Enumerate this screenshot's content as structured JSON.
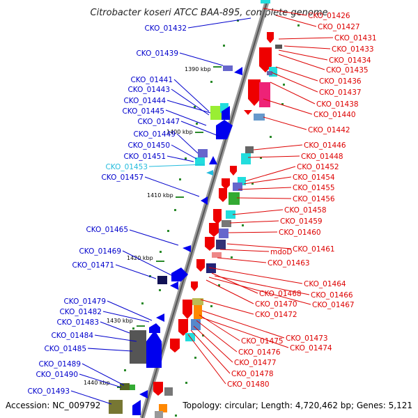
{
  "title": "Citrobacter koseri ATCC BAA-895, complete genome",
  "footer": {
    "accession": "Accession: NC_009792",
    "topology": "Topology: circular; Length: 4,720,462 bp; Genes: 5,121"
  },
  "ticks": [
    "1390 kbp",
    "1400 kbp",
    "1410 kbp",
    "1420 kbp",
    "1430 kbp",
    "1440 kbp"
  ],
  "left_labels": [
    {
      "text": "CKO_01432",
      "color": "#0000cc"
    },
    {
      "text": "CKO_01439",
      "color": "#0000cc"
    },
    {
      "text": "CKO_01441",
      "color": "#0000cc"
    },
    {
      "text": "CKO_01443",
      "color": "#0000cc"
    },
    {
      "text": "CKO_01444",
      "color": "#0000cc"
    },
    {
      "text": "CKO_01445",
      "color": "#0000cc"
    },
    {
      "text": "CKO_01447",
      "color": "#0000cc"
    },
    {
      "text": "CKO_01449",
      "color": "#0000cc"
    },
    {
      "text": "CKO_01450",
      "color": "#0000cc"
    },
    {
      "text": "CKO_01451",
      "color": "#0000cc"
    },
    {
      "text": "CKO_01453",
      "color": "#22bbdd"
    },
    {
      "text": "CKO_01457",
      "color": "#0000cc"
    },
    {
      "text": "CKO_01465",
      "color": "#0000cc"
    },
    {
      "text": "CKO_01469",
      "color": "#0000cc"
    },
    {
      "text": "CKO_01471",
      "color": "#0000cc"
    },
    {
      "text": "CKO_01479",
      "color": "#0000cc"
    },
    {
      "text": "CKO_01482",
      "color": "#0000cc"
    },
    {
      "text": "CKO_01483",
      "color": "#0000cc"
    },
    {
      "text": "CKO_01484",
      "color": "#0000cc"
    },
    {
      "text": "CKO_01485",
      "color": "#0000cc"
    },
    {
      "text": "CKO_01489",
      "color": "#0000cc"
    },
    {
      "text": "CKO_01490",
      "color": "#0000cc"
    },
    {
      "text": "CKO_01493",
      "color": "#0000cc"
    }
  ],
  "right_labels": [
    {
      "text": "CKO_01426",
      "color": "#dd0000"
    },
    {
      "text": "CKO_01427",
      "color": "#dd0000"
    },
    {
      "text": "CKO_01431",
      "color": "#dd0000"
    },
    {
      "text": "CKO_01433",
      "color": "#dd0000"
    },
    {
      "text": "CKO_01434",
      "color": "#dd0000"
    },
    {
      "text": "CKO_01435",
      "color": "#dd0000"
    },
    {
      "text": "CKO_01436",
      "color": "#dd0000"
    },
    {
      "text": "CKO_01437",
      "color": "#dd0000"
    },
    {
      "text": "CKO_01438",
      "color": "#dd0000"
    },
    {
      "text": "CKO_01440",
      "color": "#dd0000"
    },
    {
      "text": "CKO_01442",
      "color": "#dd0000"
    },
    {
      "text": "CKO_01446",
      "color": "#dd0000"
    },
    {
      "text": "CKO_01448",
      "color": "#dd0000"
    },
    {
      "text": "CKO_01452",
      "color": "#dd0000"
    },
    {
      "text": "CKO_01454",
      "color": "#dd0000"
    },
    {
      "text": "CKO_01455",
      "color": "#dd0000"
    },
    {
      "text": "CKO_01456",
      "color": "#dd0000"
    },
    {
      "text": "CKO_01458",
      "color": "#dd0000"
    },
    {
      "text": "CKO_01459",
      "color": "#dd0000"
    },
    {
      "text": "CKO_01460",
      "color": "#dd0000"
    },
    {
      "text": "CKO_01461",
      "color": "#dd0000"
    },
    {
      "text": "mdoD",
      "color": "#dd0000"
    },
    {
      "text": "CKO_01463",
      "color": "#dd0000"
    },
    {
      "text": "CKO_01464",
      "color": "#dd0000"
    },
    {
      "text": "CKO_01468",
      "color": "#dd0000"
    },
    {
      "text": "CKO_01466",
      "color": "#dd0000"
    },
    {
      "text": "CKO_01470",
      "color": "#dd0000"
    },
    {
      "text": "CKO_01467",
      "color": "#dd0000"
    },
    {
      "text": "CKO_01472",
      "color": "#dd0000"
    },
    {
      "text": "CKO_01473",
      "color": "#dd0000"
    },
    {
      "text": "CKO_01475",
      "color": "#dd0000"
    },
    {
      "text": "CKO_01474",
      "color": "#dd0000"
    },
    {
      "text": "CKO_01476",
      "color": "#dd0000"
    },
    {
      "text": "CKO_01477",
      "color": "#dd0000"
    },
    {
      "text": "CKO_01478",
      "color": "#dd0000"
    },
    {
      "text": "CKO_01480",
      "color": "#dd0000"
    }
  ]
}
